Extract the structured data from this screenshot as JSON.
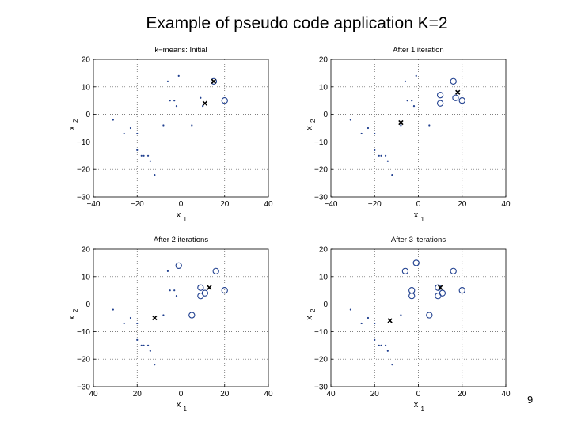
{
  "slide": {
    "title": "Example of pseudo code application K=2",
    "page_number": "9"
  },
  "colors": {
    "points": "#1f3f8f",
    "centroid": "#000000",
    "grid": "#555555"
  },
  "chart_data": [
    {
      "type": "scatter",
      "title": "k−means: Initial",
      "xlabel": "x",
      "xlabel_sub": "1",
      "ylabel": "x",
      "ylabel_sub": "2",
      "xlim": [
        -40,
        40
      ],
      "ylim": [
        -30,
        20
      ],
      "xticks": [
        "−40",
        "−20",
        "0",
        "20",
        "40"
      ],
      "yticks": [
        "20",
        "10",
        "0",
        "−10",
        "−20",
        "−30"
      ],
      "grid": true,
      "series": [
        {
          "values": [
            [
              -31,
              -2
            ],
            [
              -26,
              -7
            ],
            [
              -23,
              -5
            ],
            [
              -20,
              -7
            ],
            [
              -20,
              -13
            ],
            [
              -18,
              -15
            ],
            [
              -17,
              -15
            ],
            [
              -15,
              -15
            ],
            [
              -14,
              -17
            ],
            [
              -12,
              -22
            ],
            [
              -8,
              -4
            ],
            [
              -6,
              12
            ],
            [
              -5,
              5
            ],
            [
              -3,
              5
            ],
            [
              -2,
              3
            ],
            [
              -1,
              14
            ],
            [
              5,
              -4
            ],
            [
              9,
              6
            ],
            [
              10,
              3
            ]
          ],
          "marker": "dot"
        },
        {
          "values": [
            [
              15,
              12
            ],
            [
              20,
              5
            ]
          ],
          "marker": "circle"
        }
      ],
      "centroids": [
        [
          15,
          12
        ],
        [
          11,
          4
        ]
      ]
    },
    {
      "type": "scatter",
      "title": "After 1 iteration",
      "xlabel": "x",
      "xlabel_sub": "1",
      "ylabel": "x",
      "ylabel_sub": "2",
      "xlim": [
        -40,
        40
      ],
      "ylim": [
        -30,
        20
      ],
      "xticks": [
        "−40",
        "−20",
        "0",
        "20",
        "40"
      ],
      "yticks": [
        "20",
        "10",
        "0",
        "−10",
        "−20",
        "−30"
      ],
      "grid": true,
      "series": [
        {
          "values": [
            [
              -31,
              -2
            ],
            [
              -26,
              -7
            ],
            [
              -23,
              -5
            ],
            [
              -20,
              -7
            ],
            [
              -20,
              -13
            ],
            [
              -18,
              -15
            ],
            [
              -17,
              -15
            ],
            [
              -15,
              -15
            ],
            [
              -14,
              -17
            ],
            [
              -12,
              -22
            ],
            [
              -8,
              -4
            ],
            [
              -6,
              12
            ],
            [
              -5,
              5
            ],
            [
              -3,
              5
            ],
            [
              -2,
              3
            ],
            [
              -1,
              14
            ],
            [
              5,
              -4
            ]
          ],
          "marker": "dot"
        },
        {
          "values": [
            [
              10,
              7
            ],
            [
              10,
              4
            ],
            [
              16,
              12
            ],
            [
              17,
              6
            ],
            [
              20,
              5
            ]
          ],
          "marker": "circle"
        }
      ],
      "centroids": [
        [
          -8,
          -3
        ],
        [
          18,
          8
        ]
      ]
    },
    {
      "type": "scatter",
      "title": "After 2 iterations",
      "xlabel": "x",
      "xlabel_sub": "1",
      "ylabel": "x",
      "ylabel_sub": "2",
      "xlim": [
        -40,
        40
      ],
      "ylim": [
        -30,
        20
      ],
      "xticks": [
        "40",
        "20",
        "0",
        "20",
        "40"
      ],
      "yticks": [
        "20",
        "10",
        "0",
        "−10",
        "−20",
        "−30"
      ],
      "grid": true,
      "series": [
        {
          "values": [
            [
              -31,
              -2
            ],
            [
              -26,
              -7
            ],
            [
              -23,
              -5
            ],
            [
              -20,
              -7
            ],
            [
              -20,
              -13
            ],
            [
              -18,
              -15
            ],
            [
              -17,
              -15
            ],
            [
              -15,
              -15
            ],
            [
              -14,
              -17
            ],
            [
              -12,
              -22
            ],
            [
              -8,
              -4
            ],
            [
              -6,
              12
            ],
            [
              -5,
              5
            ],
            [
              -3,
              5
            ],
            [
              -2,
              3
            ]
          ],
          "marker": "dot"
        },
        {
          "values": [
            [
              -1,
              14
            ],
            [
              5,
              -4
            ],
            [
              9,
              6
            ],
            [
              9,
              3
            ],
            [
              11,
              4
            ],
            [
              16,
              12
            ],
            [
              20,
              5
            ]
          ],
          "marker": "circle"
        }
      ],
      "centroids": [
        [
          -12,
          -5
        ],
        [
          13,
          6
        ]
      ]
    },
    {
      "type": "scatter",
      "title": "After 3 iterations",
      "xlabel": "x",
      "xlabel_sub": "1",
      "ylabel": "x",
      "ylabel_sub": "2",
      "xlim": [
        -40,
        40
      ],
      "ylim": [
        -30,
        20
      ],
      "xticks": [
        "40",
        "20",
        "0",
        "20",
        "40"
      ],
      "yticks": [
        "20",
        "10",
        "0",
        "−10",
        "−20",
        "−30"
      ],
      "grid": true,
      "series": [
        {
          "values": [
            [
              -31,
              -2
            ],
            [
              -26,
              -7
            ],
            [
              -23,
              -5
            ],
            [
              -20,
              -7
            ],
            [
              -20,
              -13
            ],
            [
              -18,
              -15
            ],
            [
              -17,
              -15
            ],
            [
              -15,
              -15
            ],
            [
              -14,
              -17
            ],
            [
              -12,
              -22
            ],
            [
              -8,
              -4
            ]
          ],
          "marker": "dot"
        },
        {
          "values": [
            [
              -6,
              12
            ],
            [
              -3,
              5
            ],
            [
              -3,
              3
            ],
            [
              -1,
              15
            ],
            [
              5,
              -4
            ],
            [
              9,
              6
            ],
            [
              9,
              3
            ],
            [
              11,
              4
            ],
            [
              16,
              12
            ],
            [
              20,
              5
            ]
          ],
          "marker": "circle"
        }
      ],
      "centroids": [
        [
          -13,
          -6
        ],
        [
          10,
          6
        ]
      ]
    }
  ]
}
